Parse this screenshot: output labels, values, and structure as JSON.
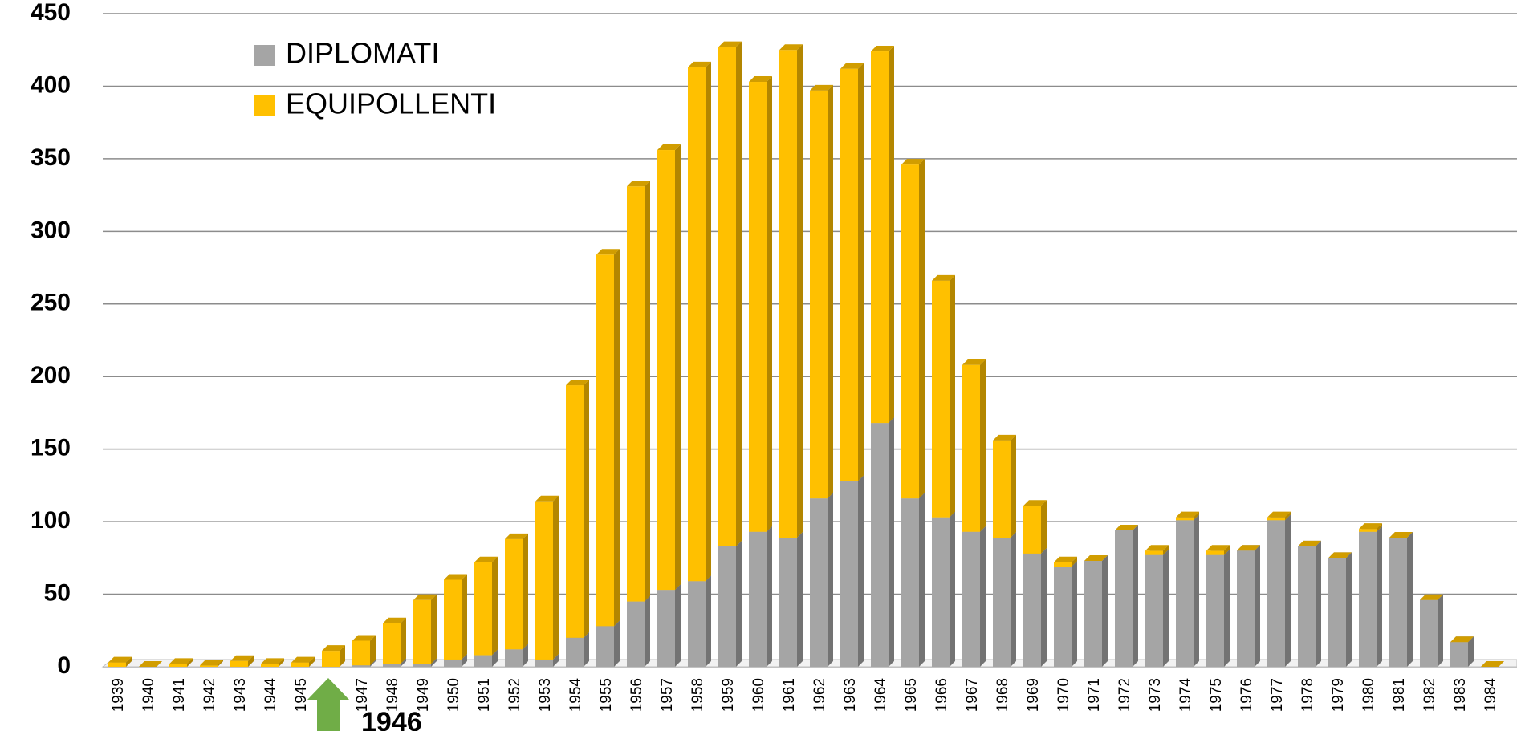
{
  "chart_data": {
    "type": "bar",
    "stacked": true,
    "categories": [
      "1939",
      "1940",
      "1941",
      "1942",
      "1943",
      "1944",
      "1945",
      null,
      "1947",
      "1948",
      "1949",
      "1950",
      "1951",
      "1952",
      "1953",
      "1954",
      "1955",
      "1956",
      "1957",
      "1958",
      "1959",
      "1960",
      "1961",
      "1962",
      "1963",
      "1964",
      "1965",
      "1966",
      "1967",
      "1968",
      "1969",
      "1970",
      "1971",
      "1972",
      "1973",
      "1974",
      "1975",
      "1976",
      "1977",
      "1978",
      "1979",
      "1980",
      "1981",
      "1982",
      "1983",
      "1984"
    ],
    "series": [
      {
        "name": "DIPLOMATI",
        "color": "#a5a5a5",
        "values": [
          0,
          0,
          0,
          0,
          0,
          0,
          0,
          0,
          1,
          2,
          2,
          5,
          8,
          12,
          5,
          20,
          28,
          45,
          53,
          59,
          83,
          93,
          89,
          116,
          128,
          168,
          116,
          103,
          93,
          89,
          78,
          69,
          73,
          94,
          77,
          101,
          77,
          80,
          101,
          83,
          75,
          93,
          89,
          46,
          17,
          0
        ]
      },
      {
        "name": "EQUIPOLLENTI",
        "color": "#ffc000",
        "values": [
          3,
          0,
          2,
          1,
          4,
          2,
          3,
          11,
          17,
          28,
          44,
          55,
          64,
          76,
          109,
          174,
          256,
          286,
          303,
          354,
          344,
          310,
          336,
          281,
          284,
          256,
          230,
          163,
          115,
          67,
          33,
          3,
          0,
          0,
          3,
          2,
          3,
          0,
          2,
          0,
          0,
          2,
          0,
          0,
          0,
          0
        ]
      }
    ],
    "ylim": [
      0,
      450
    ],
    "yticks": [
      0,
      50,
      100,
      150,
      200,
      250,
      300,
      350,
      400,
      450
    ],
    "grid": true,
    "legend": "top-left",
    "annotation": "1946"
  }
}
